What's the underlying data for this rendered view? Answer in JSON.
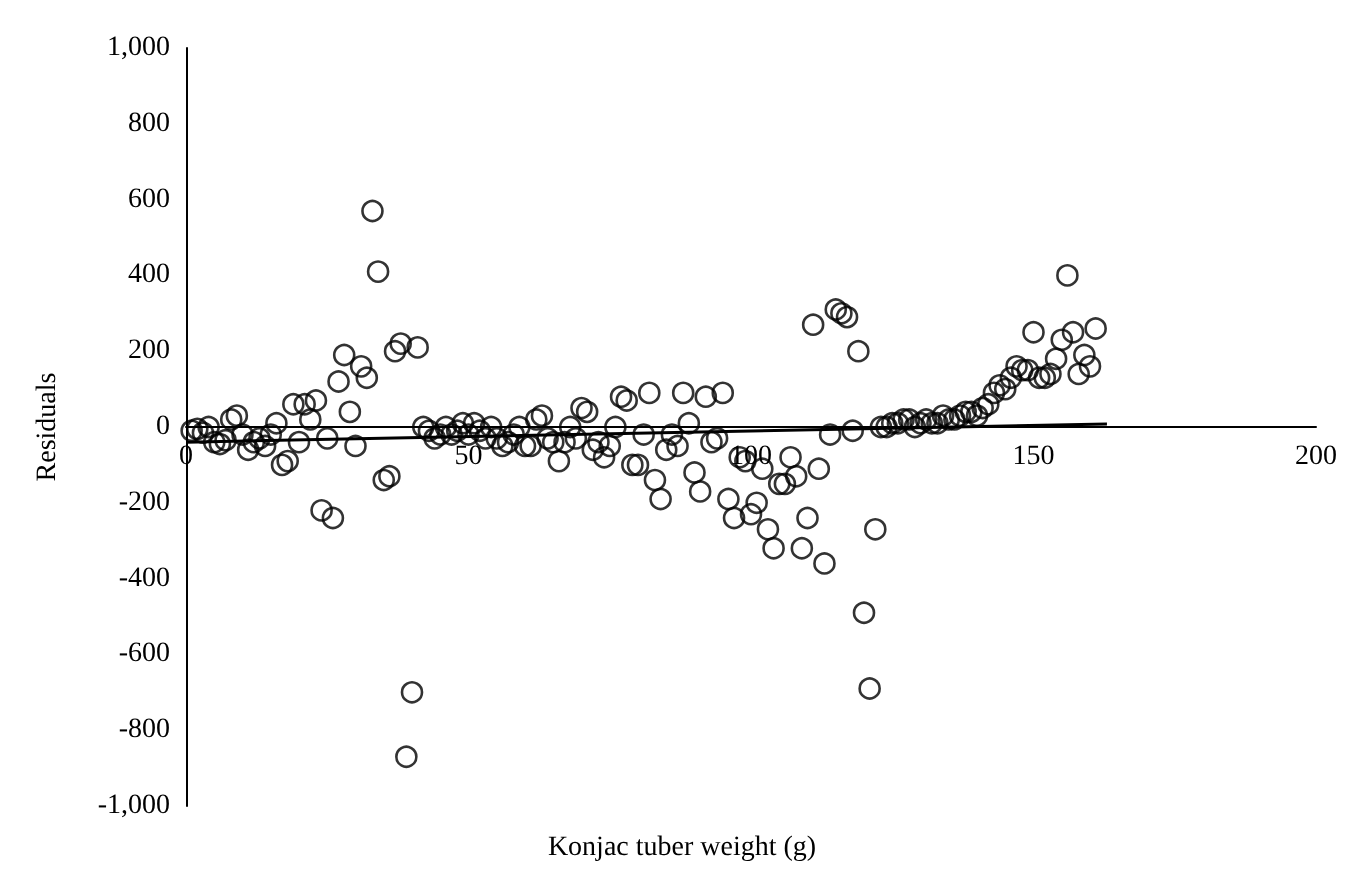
{
  "chart_data": {
    "type": "scatter",
    "xlabel": "Konjac tuber weight (g)",
    "ylabel": "Residuals",
    "xlim": [
      0,
      200
    ],
    "xticks": [
      0,
      50,
      100,
      150,
      200
    ],
    "ylim": [
      -1000,
      1000
    ],
    "yticks": [
      {
        "value": -1000,
        "label": "-1,000"
      },
      -800,
      -600,
      -400,
      -200,
      0,
      200,
      400,
      600,
      800,
      {
        "value": 1000,
        "label": "1,000"
      }
    ],
    "grid": false,
    "series": [
      {
        "color": "#000000",
        "marker": "circle",
        "x": [
          1,
          2,
          3,
          4,
          5,
          6,
          7,
          8,
          9,
          10,
          11,
          12,
          13,
          14,
          15,
          16,
          17,
          18,
          19,
          20,
          21,
          22,
          23,
          24,
          25,
          26,
          27,
          28,
          29,
          30,
          31,
          32,
          33,
          34,
          35,
          36,
          37,
          38,
          39,
          40,
          41,
          42,
          43,
          44,
          45,
          46,
          47,
          48,
          49,
          50,
          51,
          52,
          53,
          54,
          55,
          56,
          57,
          58,
          59,
          60,
          61,
          62,
          63,
          64,
          65,
          66,
          67,
          68,
          69,
          70,
          71,
          72,
          73,
          74,
          75,
          76,
          77,
          78,
          79,
          80,
          81,
          82,
          83,
          84,
          85,
          86,
          87,
          88,
          89,
          90,
          91,
          92,
          93,
          94,
          95,
          96,
          97,
          98,
          99,
          100,
          101,
          102,
          103,
          104,
          105,
          106,
          107,
          108,
          109,
          110,
          111,
          112,
          113,
          114,
          115,
          116,
          117,
          118,
          119,
          120,
          121,
          122,
          123,
          124,
          125,
          126,
          127,
          128,
          129,
          130,
          131,
          132,
          133,
          134,
          135,
          136,
          137,
          138,
          139,
          140,
          141,
          142,
          143,
          144,
          145,
          146,
          147,
          148,
          149,
          150,
          151,
          152,
          153,
          154,
          155,
          156,
          157,
          158,
          159,
          160,
          161
        ],
        "values": [
          -10,
          -5,
          -15,
          0,
          -40,
          -45,
          -35,
          20,
          30,
          -20,
          -60,
          -40,
          -30,
          -50,
          -20,
          10,
          -100,
          -90,
          60,
          -40,
          60,
          20,
          70,
          -220,
          -30,
          -240,
          120,
          190,
          40,
          -50,
          160,
          130,
          570,
          410,
          -140,
          -130,
          200,
          220,
          -870,
          -700,
          210,
          0,
          -10,
          -30,
          -20,
          0,
          -20,
          -10,
          10,
          -20,
          10,
          -10,
          -30,
          0,
          -30,
          -50,
          -40,
          -20,
          0,
          -50,
          -50,
          20,
          30,
          -30,
          -40,
          -90,
          -40,
          0,
          -30,
          50,
          40,
          -60,
          -40,
          -80,
          -50,
          0,
          80,
          70,
          -100,
          -100,
          -20,
          90,
          -140,
          -190,
          -60,
          -20,
          -50,
          90,
          10,
          -120,
          -170,
          80,
          -40,
          -30,
          90,
          -190,
          -240,
          -80,
          -90,
          -230,
          -200,
          -110,
          -270,
          -320,
          -150,
          -150,
          -80,
          -130,
          -320,
          -240,
          270,
          -110,
          -360,
          -20,
          310,
          300,
          290,
          -10,
          200,
          -490,
          -690,
          -270,
          0,
          0,
          10,
          10,
          20,
          20,
          0,
          10,
          20,
          10,
          10,
          30,
          20,
          20,
          30,
          40,
          40,
          30,
          50,
          60,
          90,
          110,
          100,
          130,
          160,
          150,
          150,
          250,
          130,
          130,
          140,
          180,
          230,
          400,
          250,
          140,
          190,
          160,
          260
        ]
      },
      {
        "type": "line",
        "color": "#000000",
        "marker": "none",
        "x": [
          0,
          163
        ],
        "values": [
          -40,
          8
        ]
      }
    ]
  }
}
